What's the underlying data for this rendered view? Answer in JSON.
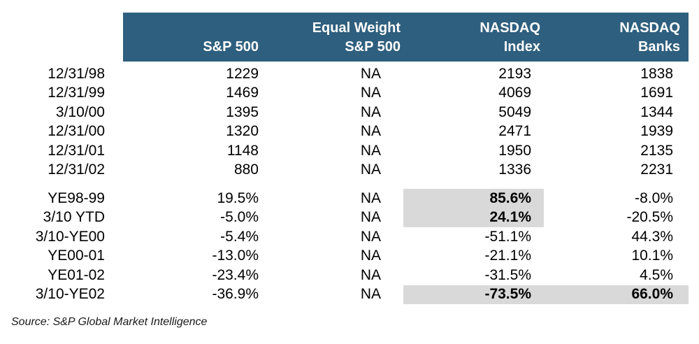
{
  "colors": {
    "header_bg": "#2F5F7E",
    "header_text": "#FFFFFF",
    "highlight": "#D9D9D9",
    "text": "#000000",
    "background": "#FFFFFF"
  },
  "header": {
    "columns": [
      {
        "line1": "",
        "line2": "S&P 500"
      },
      {
        "line1": "Equal Weight",
        "line2": "S&P 500"
      },
      {
        "line1": "NASDAQ",
        "line2": "Index"
      },
      {
        "line1": "NASDAQ",
        "line2": "Banks"
      }
    ]
  },
  "source_note": "Source: S&P Global Market Intelligence",
  "chart_data": {
    "type": "table",
    "columns": [
      "",
      "S&P 500",
      "Equal Weight S&P 500",
      "NASDAQ Index",
      "NASDAQ Banks"
    ],
    "sections": [
      {
        "name": "index_levels",
        "rows": [
          {
            "label": "12/31/98",
            "values": [
              "1229",
              "NA",
              "2193",
              "1838"
            ]
          },
          {
            "label": "12/31/99",
            "values": [
              "1469",
              "NA",
              "4069",
              "1691"
            ]
          },
          {
            "label": "3/10/00",
            "values": [
              "1395",
              "NA",
              "5049",
              "1344"
            ]
          },
          {
            "label": "12/31/00",
            "values": [
              "1320",
              "NA",
              "2471",
              "1939"
            ]
          },
          {
            "label": "12/31/01",
            "values": [
              "1148",
              "NA",
              "1950",
              "2135"
            ]
          },
          {
            "label": "12/31/02",
            "values": [
              "880",
              "NA",
              "1336",
              "2231"
            ]
          }
        ]
      },
      {
        "name": "period_returns",
        "rows": [
          {
            "label": "YE98-99",
            "values": [
              "19.5%",
              "NA",
              "85.6%",
              "-8.0%"
            ],
            "highlight": [
              false,
              false,
              true,
              false
            ],
            "bold": [
              false,
              false,
              true,
              false
            ]
          },
          {
            "label": "3/10 YTD",
            "values": [
              "-5.0%",
              "NA",
              "24.1%",
              "-20.5%"
            ],
            "highlight": [
              false,
              false,
              true,
              false
            ],
            "bold": [
              false,
              false,
              true,
              false
            ]
          },
          {
            "label": "3/10-YE00",
            "values": [
              "-5.4%",
              "NA",
              "-51.1%",
              "44.3%"
            ],
            "highlight": [
              false,
              false,
              false,
              false
            ],
            "bold": [
              false,
              false,
              false,
              false
            ]
          },
          {
            "label": "YE00-01",
            "values": [
              "-13.0%",
              "NA",
              "-21.1%",
              "10.1%"
            ],
            "highlight": [
              false,
              false,
              false,
              false
            ],
            "bold": [
              false,
              false,
              false,
              false
            ]
          },
          {
            "label": "YE01-02",
            "values": [
              "-23.4%",
              "NA",
              "-31.5%",
              "4.5%"
            ],
            "highlight": [
              false,
              false,
              false,
              false
            ],
            "bold": [
              false,
              false,
              false,
              false
            ]
          },
          {
            "label": "3/10-YE02",
            "values": [
              "-36.9%",
              "NA",
              "-73.5%",
              "66.0%"
            ],
            "highlight": [
              false,
              false,
              true,
              true
            ],
            "bold": [
              false,
              false,
              true,
              true
            ]
          }
        ]
      }
    ],
    "source": "Source: S&P Global Market Intelligence"
  }
}
